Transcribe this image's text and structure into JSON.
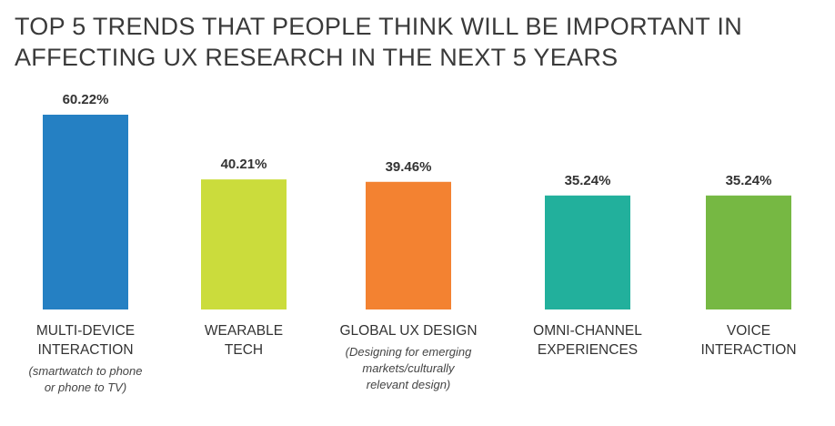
{
  "chart_data": {
    "type": "bar",
    "title_lines": [
      "TOP 5 TRENDS THAT PEOPLE THINK WILL BE IMPORTANT IN",
      "AFFECTING UX RESEARCH IN THE NEXT 5 YEARS"
    ],
    "categories": [
      {
        "label_lines": [
          "MULTI-DEVICE",
          "INTERACTION"
        ],
        "note_lines": [
          "(smartwatch to phone",
          "or phone to TV)"
        ],
        "value": 60.22,
        "value_label": "60.22%",
        "color": "#2580c3"
      },
      {
        "label_lines": [
          "WEARABLE",
          "TECH"
        ],
        "note_lines": [],
        "value": 40.21,
        "value_label": "40.21%",
        "color": "#cbdc3c"
      },
      {
        "label_lines": [
          "GLOBAL UX DESIGN"
        ],
        "note_lines": [
          "(Designing for emerging",
          "markets/culturally",
          "relevant design)"
        ],
        "value": 39.46,
        "value_label": "39.46%",
        "color": "#f38231"
      },
      {
        "label_lines": [
          "OMNI-CHANNEL",
          "EXPERIENCES"
        ],
        "note_lines": [],
        "value": 35.24,
        "value_label": "35.24%",
        "color": "#22b09c"
      },
      {
        "label_lines": [
          "VOICE",
          "INTERACTION"
        ],
        "note_lines": [],
        "value": 35.24,
        "value_label": "35.24%",
        "color": "#76b843"
      }
    ],
    "ylim": [
      0,
      60.22
    ],
    "grid": false,
    "legend": "none"
  }
}
